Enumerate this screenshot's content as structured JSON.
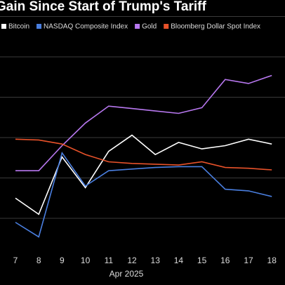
{
  "chart_data": {
    "type": "line",
    "title": "Gain Since Start of Trump's Tariff",
    "x_label": "Apr 2025",
    "categories": [
      "7",
      "8",
      "9",
      "10",
      "11",
      "12",
      "13",
      "14",
      "15",
      "16",
      "17",
      "18"
    ],
    "series": [
      {
        "name": "Bitcoin",
        "color": "#ffffff",
        "values": [
          -7.5,
          -9.5,
          -2.4,
          -6.2,
          -1.7,
          0.3,
          -2.1,
          -0.6,
          -1.4,
          -1.0,
          -0.2,
          -0.8
        ]
      },
      {
        "name": "NASDAQ Composite Index",
        "color": "#4a7fe0",
        "values": [
          -10.5,
          -12.3,
          -1.9,
          -6.0,
          -4.1,
          -3.9,
          -3.7,
          -3.6,
          -3.6,
          -6.4,
          -6.6,
          -7.3
        ]
      },
      {
        "name": "Gold",
        "color": "#b878f0",
        "values": [
          -4.1,
          -4.1,
          -1.0,
          1.8,
          3.9,
          3.6,
          3.3,
          3.0,
          3.7,
          7.2,
          6.7,
          7.7
        ]
      },
      {
        "name": "Bloomberg Dollar Spot Index",
        "color": "#e8522a",
        "values": [
          -0.2,
          -0.3,
          -0.8,
          -2.1,
          -3.0,
          -3.2,
          -3.3,
          -3.4,
          -3.0,
          -3.7,
          -3.8,
          -4.0
        ]
      }
    ],
    "ylim": [
      -13,
      17
    ],
    "yticks": [
      -10,
      -5,
      0,
      5,
      10,
      15
    ],
    "grid": true
  }
}
